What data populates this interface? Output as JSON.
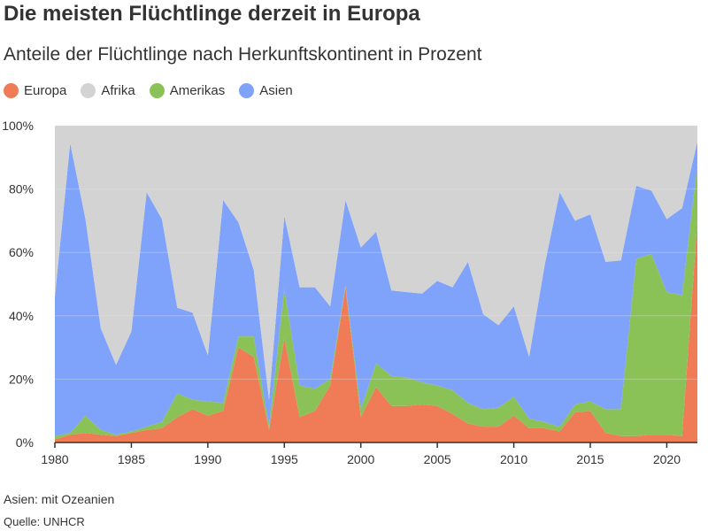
{
  "header": {
    "title": "Die meisten Flüchtlinge derzeit in Europa",
    "subtitle": "Anteile der Flüchtlinge nach Herkunftskontinent in Prozent"
  },
  "footer": {
    "note": "Asien: mit Ozeanien",
    "source": "Quelle: UNHCR"
  },
  "colors": {
    "Europa": "#f07b57",
    "Afrika": "#d3d3d3",
    "Amerikas": "#8bc257",
    "Asien": "#7fa2fb",
    "axis": "#333333",
    "grid": "#e6e6e6"
  },
  "chart_data": {
    "type": "area",
    "stacking": "stacked to 100%",
    "title": "Die meisten Flüchtlinge derzeit in Europa",
    "subtitle": "Anteile der Flüchtlinge nach Herkunftskontinent in Prozent",
    "xlabel": "",
    "ylabel": "",
    "xlim": [
      1980,
      2022
    ],
    "ylim": [
      0,
      100
    ],
    "x_ticks": [
      1980,
      1985,
      1990,
      1995,
      2000,
      2005,
      2010,
      2015,
      2020
    ],
    "y_ticks": [
      0,
      20,
      40,
      60,
      80,
      100
    ],
    "y_tick_labels": [
      "0%",
      "20%",
      "40%",
      "60%",
      "80%",
      "100%"
    ],
    "legend_position": "top-left",
    "grid": "horizontal",
    "x": [
      1980,
      1981,
      1982,
      1983,
      1984,
      1985,
      1986,
      1987,
      1988,
      1989,
      1990,
      1991,
      1992,
      1993,
      1994,
      1995,
      1996,
      1997,
      1998,
      1999,
      2000,
      2001,
      2002,
      2003,
      2004,
      2005,
      2006,
      2007,
      2008,
      2009,
      2010,
      2011,
      2012,
      2013,
      2014,
      2015,
      2016,
      2017,
      2018,
      2019,
      2020,
      2021,
      2022
    ],
    "series": [
      {
        "name": "Europa",
        "values": [
          1,
          2.5,
          3,
          2.5,
          2,
          3,
          4,
          4.5,
          8,
          10.5,
          8.5,
          10,
          30,
          27,
          4,
          33,
          8,
          10,
          18,
          49,
          8,
          17.5,
          11.5,
          11.5,
          12,
          11.5,
          9,
          6,
          5,
          5,
          8.5,
          4.5,
          4.5,
          3.5,
          9.5,
          10,
          3,
          2,
          2,
          2.5,
          2.5,
          2,
          70
        ]
      },
      {
        "name": "Amerikas",
        "values": [
          1,
          0.5,
          5.5,
          1.5,
          0.5,
          0.5,
          1,
          2,
          7.5,
          3,
          4.5,
          2.5,
          3.5,
          6.5,
          1,
          15.5,
          10,
          7,
          2,
          0.5,
          2.5,
          7.5,
          9.5,
          9,
          7,
          6.5,
          7.5,
          6.5,
          5.5,
          6,
          6,
          3,
          2,
          1.5,
          2.5,
          3,
          7.5,
          8.5,
          56,
          57,
          45,
          44.5,
          18
        ]
      },
      {
        "name": "Asien",
        "values": [
          44,
          91.5,
          62,
          32,
          22,
          31.5,
          74,
          64,
          27,
          27.5,
          14.5,
          64,
          36,
          21,
          8.5,
          23,
          31,
          32,
          23,
          27,
          51,
          41.5,
          27,
          27,
          28,
          33,
          32.5,
          44.5,
          30,
          26,
          28.5,
          19.5,
          49,
          74,
          58,
          59,
          46.5,
          47,
          23,
          20,
          23,
          27.5,
          7
        ]
      },
      {
        "name": "Afrika",
        "values": [
          54,
          5.5,
          29.5,
          64,
          75.5,
          65,
          21,
          29.5,
          57.5,
          59,
          72.5,
          23.5,
          30.5,
          45.5,
          86.5,
          28.5,
          51,
          51,
          57,
          23.5,
          38.5,
          33.5,
          52,
          52.5,
          53,
          49,
          51,
          43,
          59.5,
          63,
          57,
          73,
          44.5,
          21,
          30,
          28,
          43,
          42.5,
          19,
          20.5,
          29.5,
          26,
          5
        ]
      }
    ]
  }
}
